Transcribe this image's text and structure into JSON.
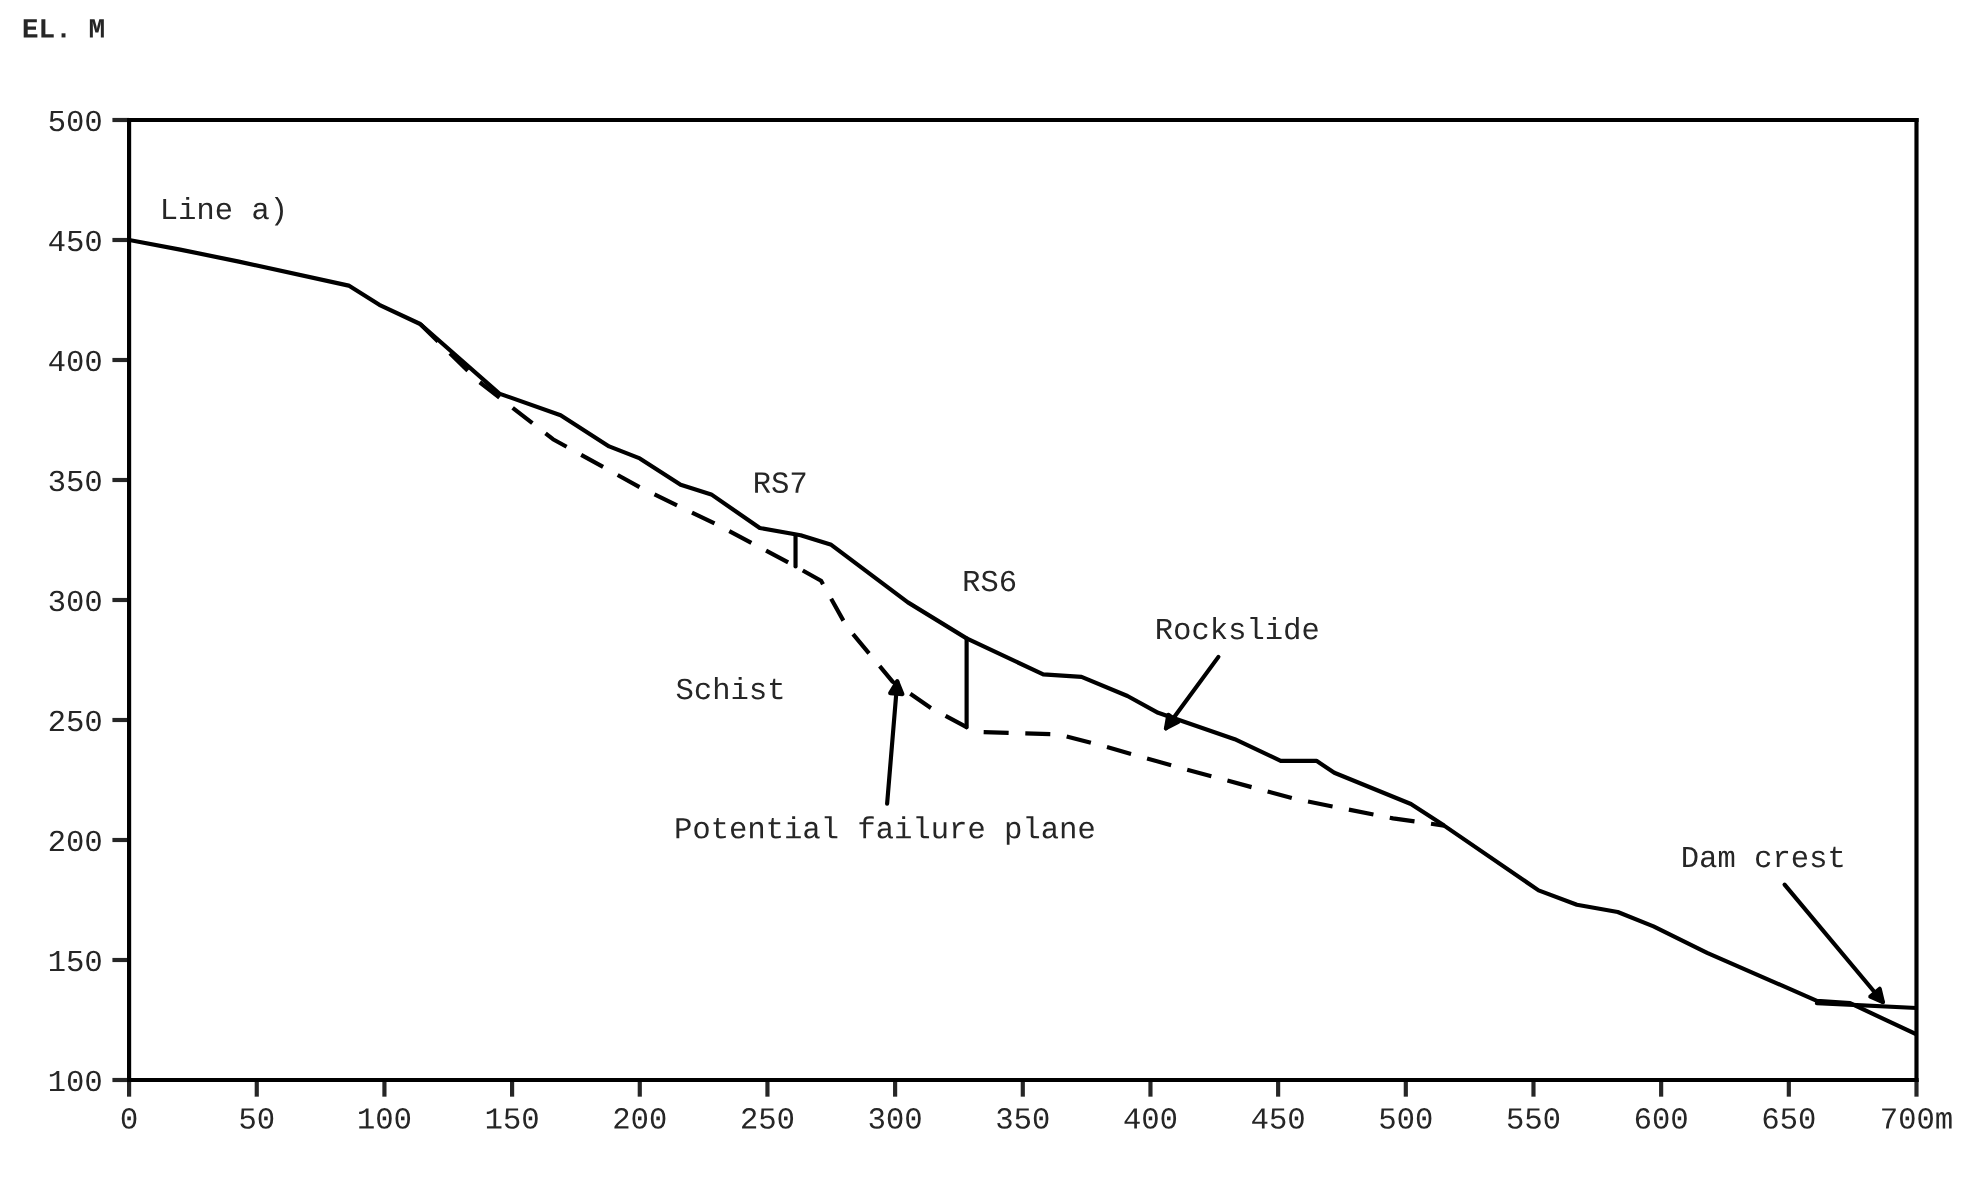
{
  "chart_data": {
    "type": "line",
    "ylabel": "EL. M",
    "xlim": [
      0,
      700
    ],
    "ylim": [
      100,
      500
    ],
    "xticks": [
      0,
      50,
      100,
      150,
      200,
      250,
      300,
      350,
      400,
      450,
      500,
      550,
      600,
      650,
      {
        "value": 700,
        "label": "700m"
      }
    ],
    "yticks": [
      100,
      150,
      200,
      250,
      300,
      350,
      400,
      450,
      500
    ],
    "grid": false,
    "legend": false,
    "marker": "none",
    "series": [
      {
        "color": "#000000",
        "line_style": "solid",
        "x": [
          0,
          20,
          43,
          86,
          98,
          114,
          145,
          169,
          188,
          200,
          216,
          228,
          247,
          263,
          275,
          305,
          328,
          358,
          373,
          391,
          403,
          433,
          451,
          465,
          472,
          502,
          515,
          552,
          567,
          583,
          597,
          618,
          661,
          674,
          700
        ],
        "values": [
          450,
          446,
          441,
          431,
          423,
          415,
          386,
          377,
          364,
          359,
          348,
          344,
          330,
          327,
          323,
          299,
          284,
          269,
          268,
          260,
          253,
          242,
          233,
          233,
          228,
          215,
          206,
          179,
          173,
          170,
          164,
          153,
          133,
          132,
          119
        ]
      },
      {
        "color": "#000000",
        "line_style": "dashed",
        "x": [
          114,
          137,
          166,
          200,
          231,
          261,
          271,
          281,
          299,
          314,
          328,
          334,
          364,
          382,
          412,
          457,
          495,
          515
        ],
        "values": [
          415,
          391,
          367,
          347,
          331,
          314,
          308,
          289,
          266,
          255,
          247,
          245,
          244,
          239,
          230,
          217,
          209,
          206
        ]
      },
      {
        "color": "#000000",
        "line_style": "solid",
        "x": [
          261,
          261
        ],
        "values": [
          327,
          314
        ]
      },
      {
        "color": "#000000",
        "line_style": "solid",
        "x": [
          328,
          328
        ],
        "values": [
          284,
          247
        ]
      },
      {
        "color": "#000000",
        "line_style": "solid",
        "x": [
          661,
          700
        ],
        "values": [
          132,
          130
        ]
      }
    ],
    "annotations": [
      "Line a)",
      "Schist",
      {
        "text": "RS7",
        "x": 261,
        "y": 327
      },
      {
        "text": "RS6",
        "x": 328,
        "y": 284
      },
      {
        "text": "Potential failure plane",
        "x": 301,
        "y": 268
      },
      "Rockslide",
      {
        "text": "Dam crest",
        "x": 688,
        "y": 131
      }
    ]
  }
}
